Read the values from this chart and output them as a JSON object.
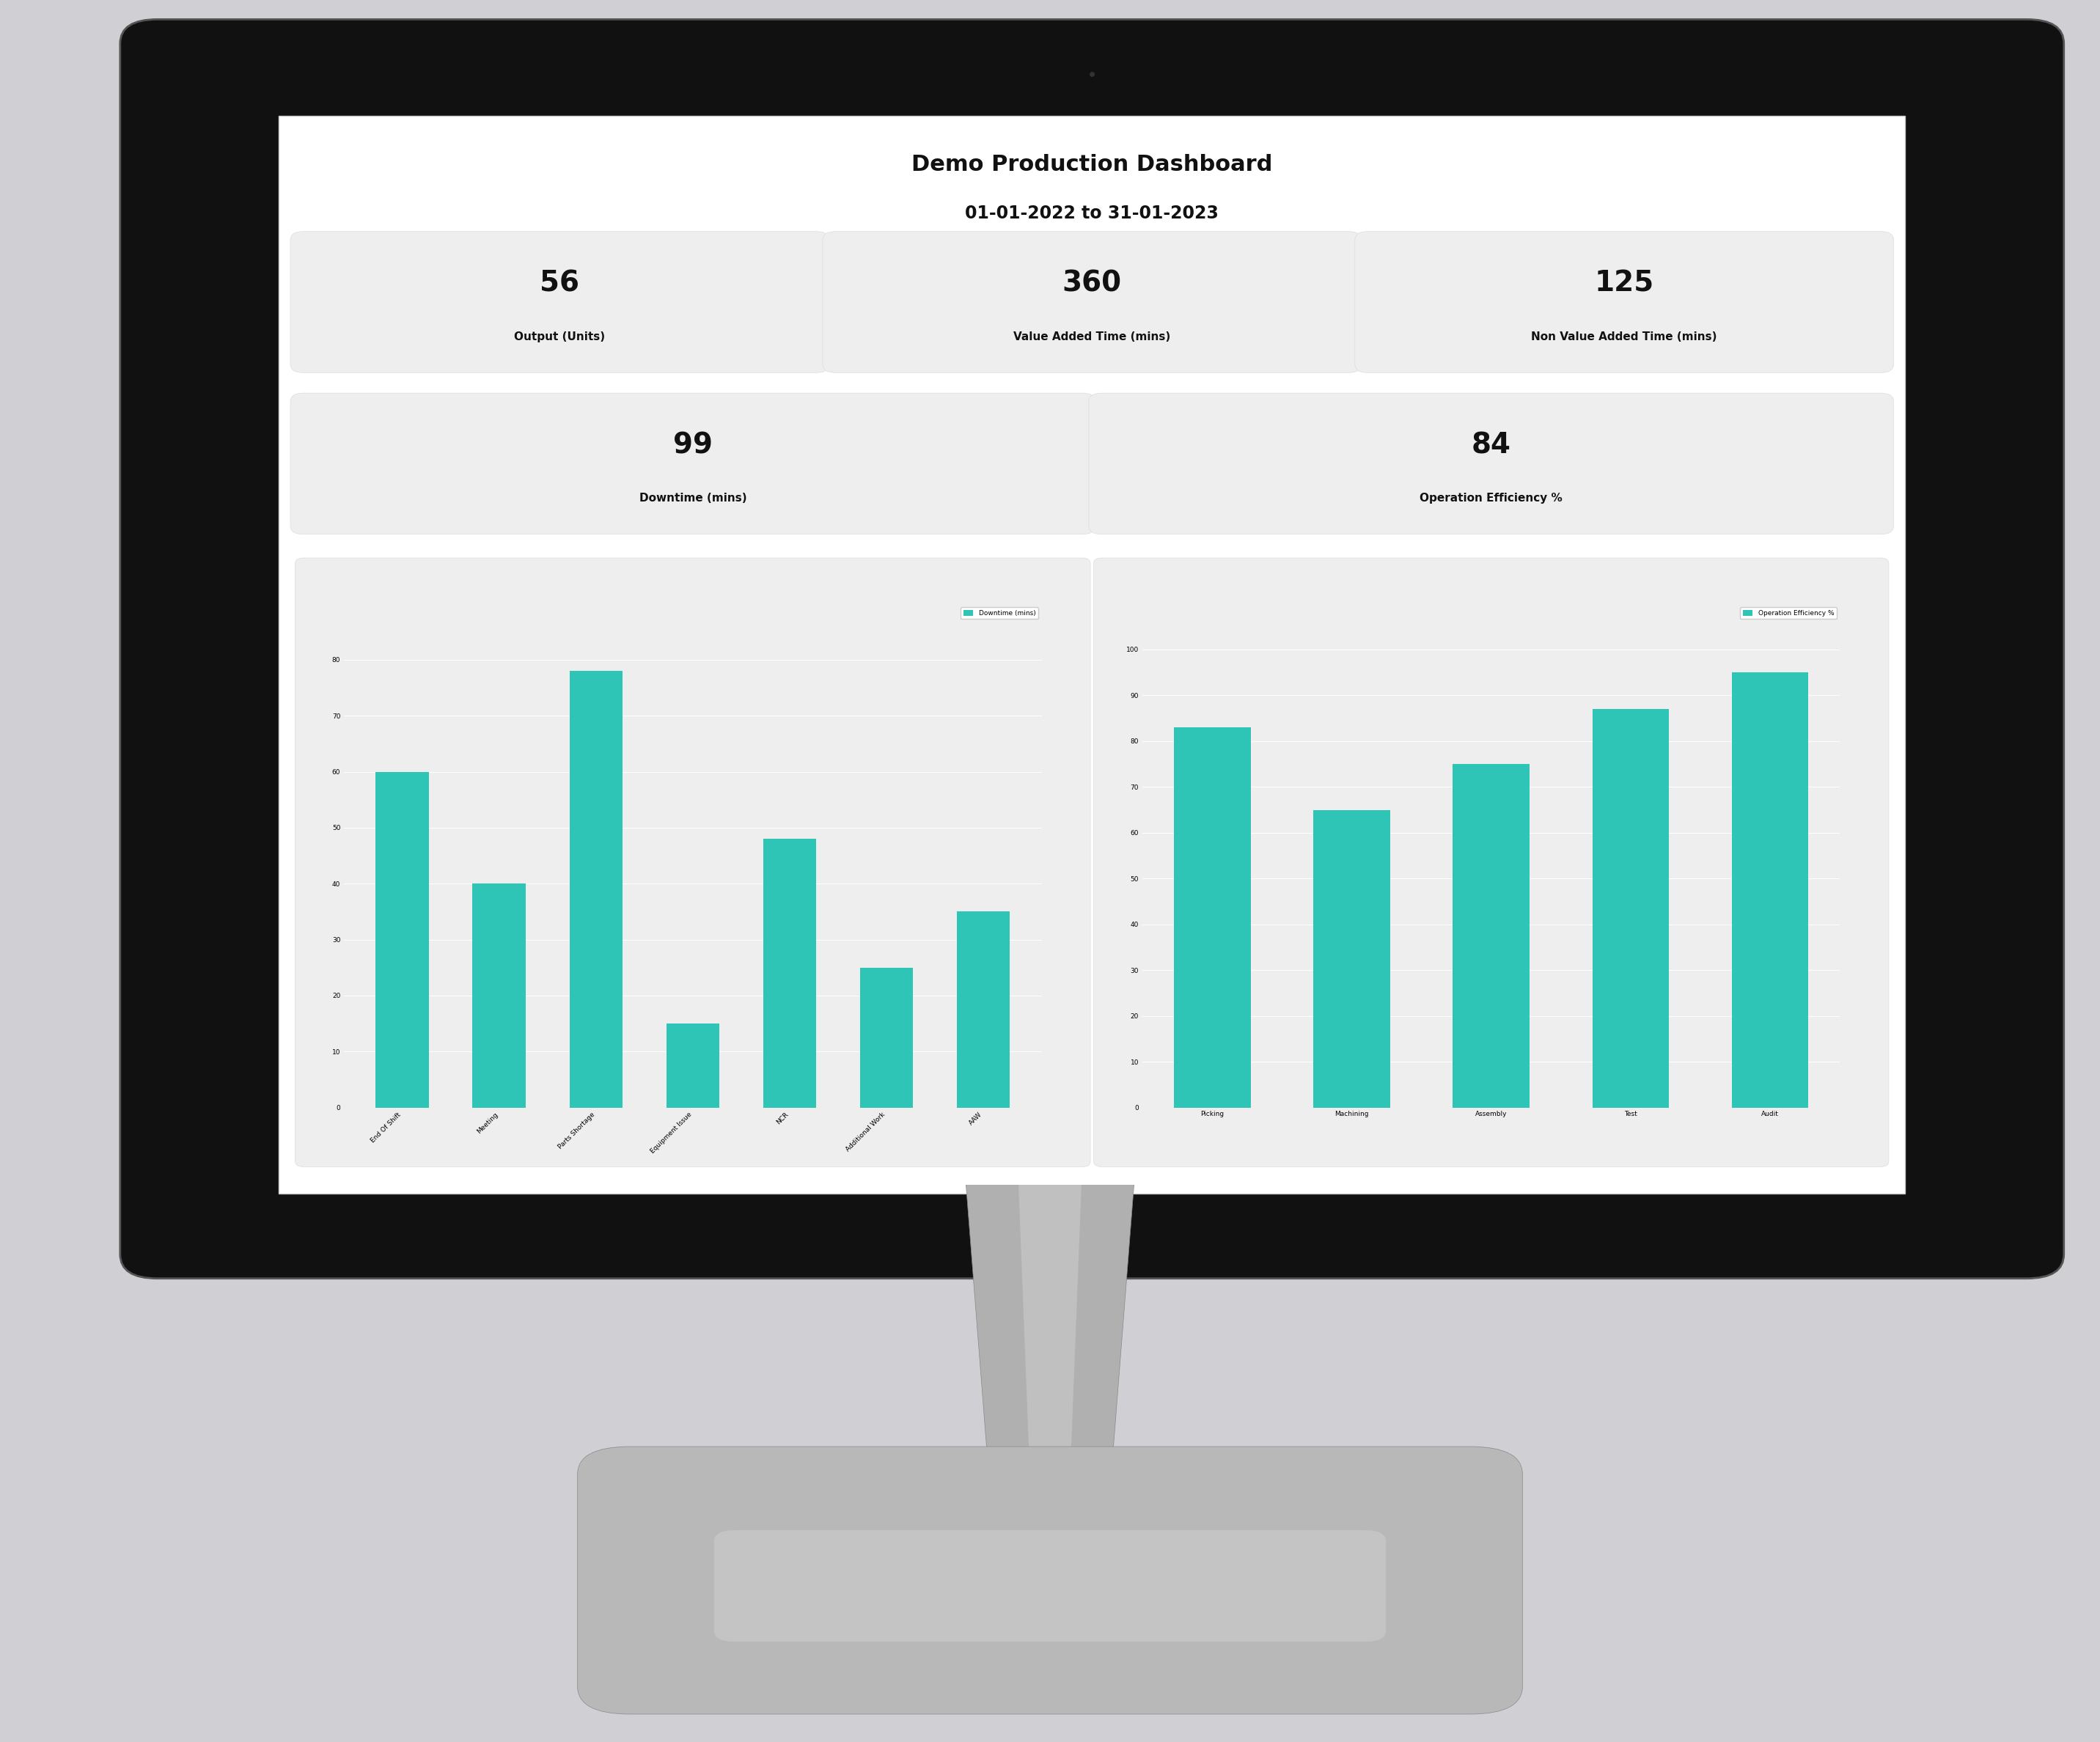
{
  "title": "Demo Production Dashboard",
  "subtitle": "01-01-2022 to 31-01-2023",
  "kpi_cards_row1": [
    {
      "value": "56",
      "label": "Output (Units)"
    },
    {
      "value": "360",
      "label": "Value Added Time (mins)"
    },
    {
      "value": "125",
      "label": "Non Value Added Time (mins)"
    }
  ],
  "kpi_cards_row2": [
    {
      "value": "99",
      "label": "Downtime (mins)"
    },
    {
      "value": "84",
      "label": "Operation Efficiency %"
    }
  ],
  "downtime_chart": {
    "legend_label": "Downtime (mins)",
    "categories": [
      "End Of Shift",
      "Meeting",
      "Parts Shortage",
      "Equipment Issue",
      "NCR",
      "Additional Work",
      "AAW"
    ],
    "values": [
      60,
      40,
      78,
      15,
      48,
      25,
      35
    ],
    "bar_color": "#2EC4B6",
    "ylim": [
      0,
      90
    ],
    "yticks": [
      0,
      10,
      20,
      30,
      40,
      50,
      60,
      70,
      80
    ]
  },
  "efficiency_chart": {
    "legend_label": "Operation Efficiency %",
    "categories": [
      "Picking",
      "Machining",
      "Assembly",
      "Test",
      "Audit"
    ],
    "values": [
      83,
      65,
      75,
      87,
      95
    ],
    "bar_color": "#2EC4B6",
    "ylim": [
      0,
      110
    ],
    "yticks": [
      0,
      10,
      20,
      30,
      40,
      50,
      60,
      70,
      80,
      90,
      100
    ]
  },
  "outer_bg": "#d0d0d4",
  "bezel_color": "#111111",
  "bezel_edge_color": "#333333",
  "screen_inner_bg": "#ffffff",
  "card_bg": "#eeeeee",
  "stand_neck_color": "#999999",
  "stand_base_color": "#aaaaaa",
  "title_fontsize": 22,
  "subtitle_fontsize": 17,
  "kpi_value_fontsize": 28,
  "kpi_label_fontsize": 11
}
